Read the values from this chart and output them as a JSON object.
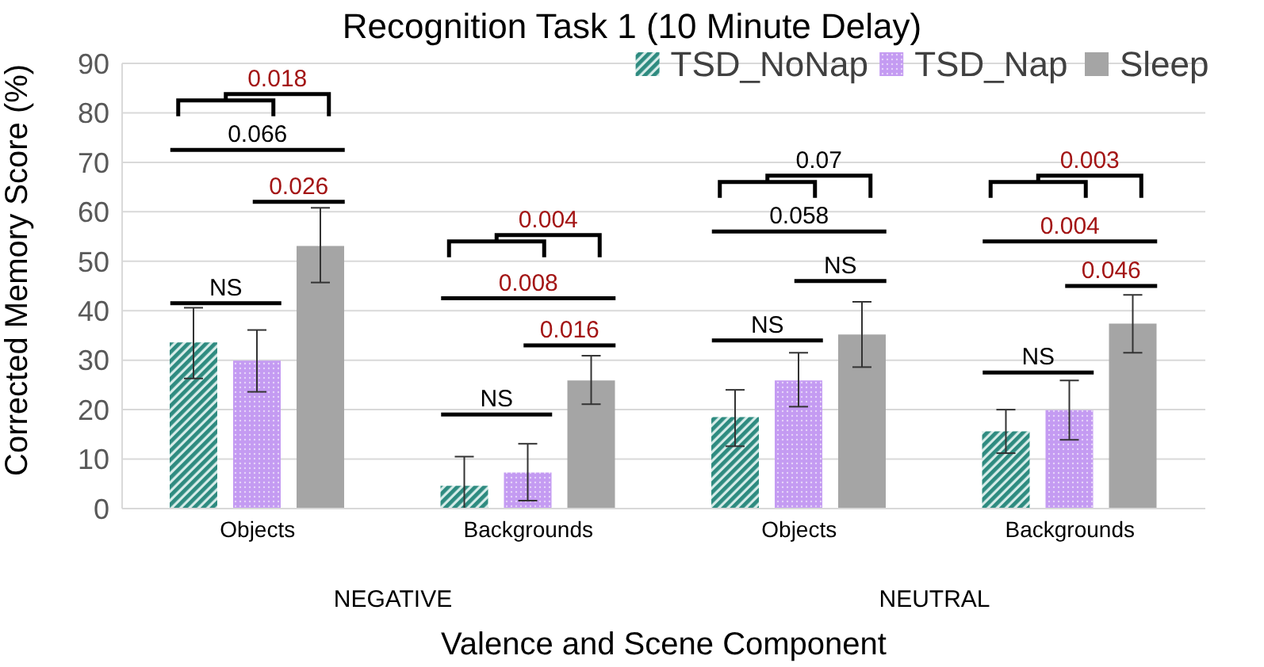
{
  "chart_data": {
    "type": "bar",
    "title": "Recognition Task 1 (10 Minute Delay)",
    "xlabel": "Valence and Scene Component",
    "ylabel": "Corrected Memory Score (%)",
    "categories": [
      "Objects",
      "Backgrounds",
      "Objects",
      "Backgrounds"
    ],
    "series": [
      {
        "name": "TSD_NoNap",
        "color": "#2e8b80",
        "values": [
          33.6,
          4.6,
          18.5,
          15.6
        ],
        "errors": [
          [
            26.3,
            40.6
          ],
          [
            0,
            10.5
          ],
          [
            12.6,
            24.0
          ],
          [
            11.2,
            20.0
          ]
        ]
      },
      {
        "name": "TSD_Nap",
        "color": "#c49bf2",
        "values": [
          29.9,
          7.3,
          25.9,
          19.9
        ],
        "errors": [
          [
            23.6,
            36.1
          ],
          [
            1.6,
            13.1
          ],
          [
            20.6,
            31.5
          ],
          [
            13.9,
            25.9
          ]
        ]
      },
      {
        "name": "Sleep",
        "color": "#a5a5a5",
        "values": [
          53.1,
          25.9,
          35.2,
          37.4
        ],
        "errors": [
          [
            45.7,
            60.8
          ],
          [
            21.1,
            30.9
          ],
          [
            28.6,
            41.8
          ],
          [
            31.5,
            43.2
          ]
        ]
      }
    ],
    "ylim": [
      0,
      90
    ],
    "yticks": [
      0,
      10,
      20,
      30,
      40,
      50,
      60,
      70,
      80,
      90
    ],
    "grid": "y",
    "legend": "top right",
    "annotations": [
      "0.018",
      "0.066",
      "0.026",
      "NS",
      "0.004",
      "0.008",
      "0.016",
      "NS",
      "0.07",
      "0.058",
      "NS",
      "NS",
      "0.003",
      "0.004",
      "0.046",
      "NS",
      "NEGATIVE",
      "NEUTRAL"
    ]
  }
}
